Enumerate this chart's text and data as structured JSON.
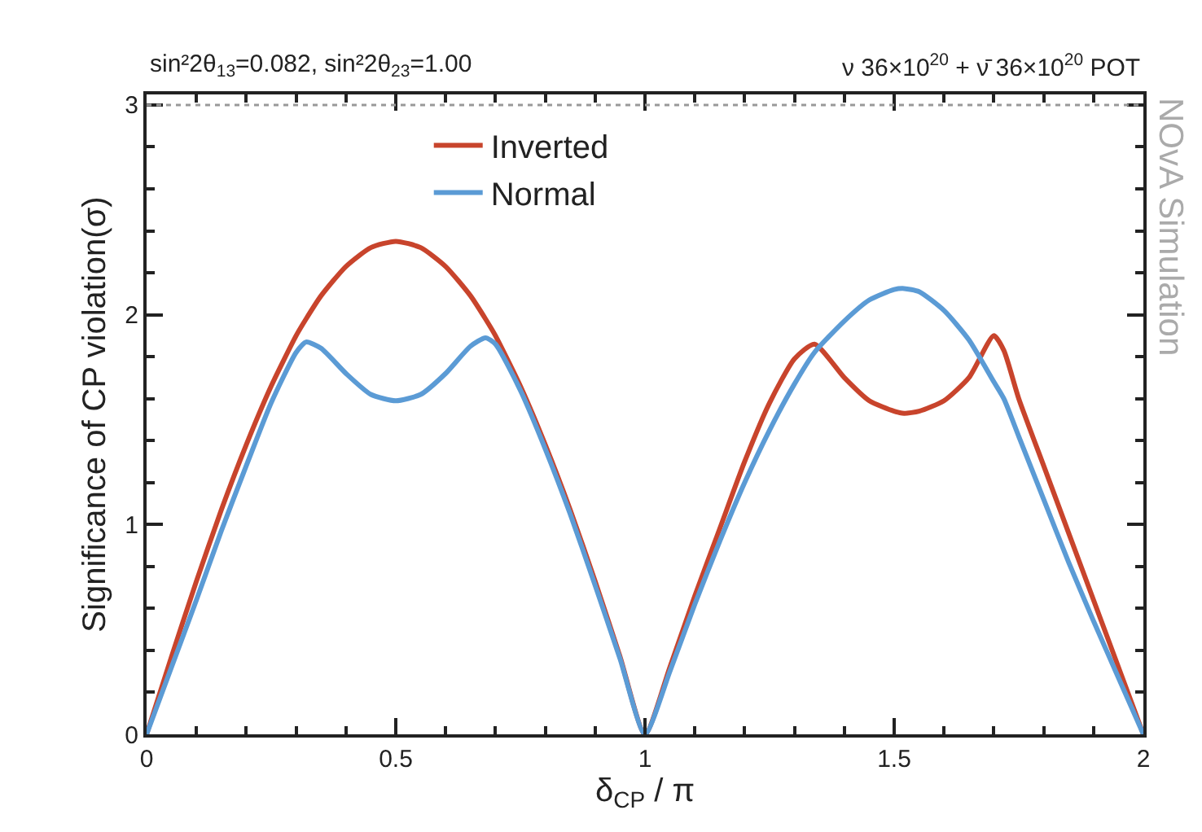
{
  "chart_data": {
    "type": "line",
    "title": "sin²2θ$_{13}$=0.082, sin²2θ$_{23}$=1.00",
    "subtitle": "ν 36×10$^{20}$ + ν̄ 36×10$^{20}$ POT",
    "xlabel": "δ$_{CP}$ / π",
    "ylabel": "Significance of CP violation(σ)",
    "annotations": [
      "NOvA Simulation"
    ],
    "x": [
      0,
      0.05,
      0.1,
      0.15,
      0.2,
      0.25,
      0.3,
      0.32,
      0.35,
      0.4,
      0.45,
      0.5,
      0.55,
      0.6,
      0.65,
      0.68,
      0.7,
      0.75,
      0.8,
      0.85,
      0.9,
      0.95,
      1.0,
      1.05,
      1.1,
      1.15,
      1.2,
      1.25,
      1.3,
      1.34,
      1.4,
      1.45,
      1.5,
      1.52,
      1.55,
      1.6,
      1.65,
      1.7,
      1.72,
      1.75,
      1.8,
      1.85,
      1.9,
      1.95,
      2.0
    ],
    "series": [
      {
        "name": "Inverted",
        "color": "#c8442c",
        "values": [
          0,
          0.37,
          0.73,
          1.07,
          1.38,
          1.66,
          1.9,
          1.98,
          2.09,
          2.23,
          2.32,
          2.35,
          2.32,
          2.23,
          2.09,
          1.98,
          1.9,
          1.66,
          1.38,
          1.07,
          0.73,
          0.37,
          0,
          0.32,
          0.66,
          0.98,
          1.3,
          1.58,
          1.79,
          1.86,
          1.7,
          1.59,
          1.54,
          1.53,
          1.54,
          1.59,
          1.7,
          1.9,
          1.83,
          1.6,
          1.28,
          0.96,
          0.64,
          0.32,
          0
        ]
      },
      {
        "name": "Normal",
        "color": "#5b9bd5",
        "values": [
          0,
          0.32,
          0.64,
          0.97,
          1.28,
          1.58,
          1.82,
          1.87,
          1.84,
          1.72,
          1.62,
          1.59,
          1.62,
          1.72,
          1.85,
          1.89,
          1.86,
          1.64,
          1.36,
          1.05,
          0.71,
          0.36,
          0,
          0.3,
          0.62,
          0.92,
          1.2,
          1.45,
          1.67,
          1.82,
          1.97,
          2.07,
          2.12,
          2.125,
          2.11,
          2.02,
          1.88,
          1.68,
          1.6,
          1.42,
          1.12,
          0.82,
          0.54,
          0.27,
          0
        ]
      }
    ],
    "xlim": [
      0,
      2
    ],
    "xticks": [
      0,
      0.5,
      1,
      1.5,
      2
    ],
    "ylim": [
      0,
      3.05
    ],
    "yticks": [
      0,
      1,
      2,
      3
    ],
    "ref_lines": [
      {
        "axis": "y",
        "value": 3,
        "color": "#999999",
        "line_style": "dotted"
      }
    ],
    "legend": "top",
    "marker": "none",
    "line_style": "solid"
  }
}
